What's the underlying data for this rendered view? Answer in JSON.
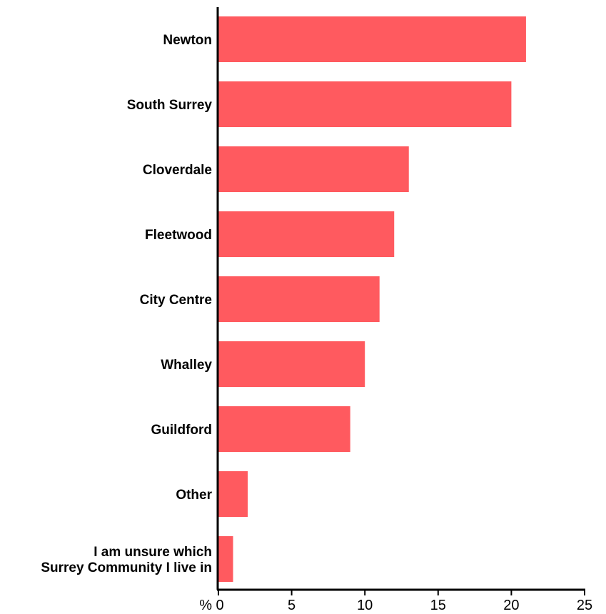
{
  "chart_data": {
    "type": "bar",
    "orientation": "horizontal",
    "categories": [
      [
        "Newton"
      ],
      [
        "South Surrey"
      ],
      [
        "Cloverdale"
      ],
      [
        "Fleetwood"
      ],
      [
        "City Centre"
      ],
      [
        "Whalley"
      ],
      [
        "Guildford"
      ],
      [
        "Other"
      ],
      [
        "I am unsure which",
        "Surrey Community I live in"
      ]
    ],
    "values": [
      21,
      20,
      13,
      12,
      11,
      10,
      9,
      2,
      1
    ],
    "xlim": [
      0,
      25
    ],
    "xticks": [
      0,
      5,
      10,
      15,
      20,
      25
    ],
    "x_unit_label": "%",
    "grid": false,
    "legend": "none",
    "bar_color": "#ff5a5f",
    "axis_color": "#000000"
  }
}
